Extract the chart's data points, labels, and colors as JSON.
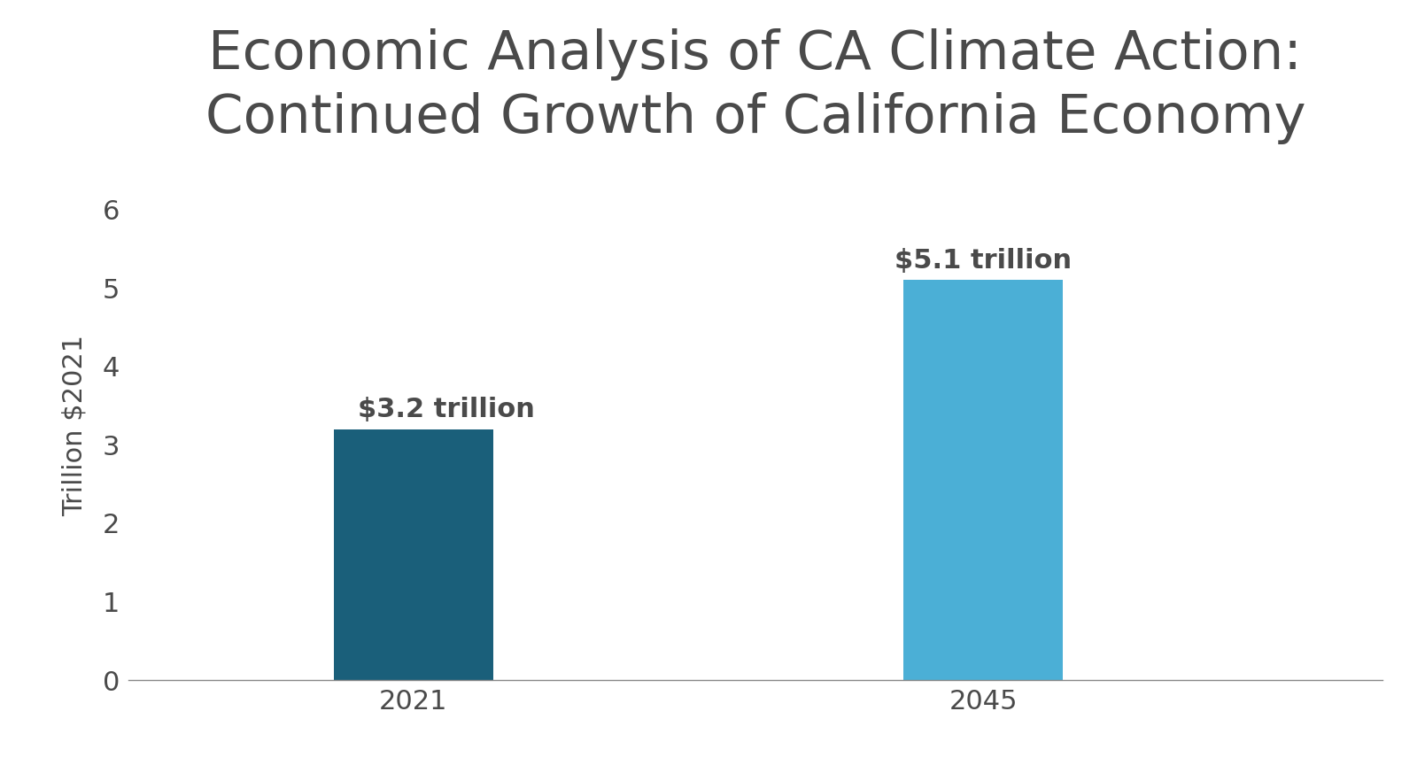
{
  "categories": [
    "2021",
    "2045"
  ],
  "values": [
    3.2,
    5.1
  ],
  "bar_colors": [
    "#1a5f7a",
    "#4bafd6"
  ],
  "bar_labels": [
    "$3.2 trillion",
    "$5.1 trillion"
  ],
  "title": "Economic Analysis of CA Climate Action:\nContinued Growth of California Economy",
  "ylabel": "Trillion $2021",
  "ylim": [
    0,
    6.5
  ],
  "yticks": [
    0,
    1,
    2,
    3,
    4,
    5,
    6
  ],
  "title_fontsize": 44,
  "axis_label_fontsize": 22,
  "tick_fontsize": 22,
  "bar_label_fontsize": 22,
  "background_color": "#ffffff",
  "text_color": "#4a4a4a",
  "bar_width": 0.28,
  "x_positions": [
    1,
    2
  ],
  "xlim": [
    0.5,
    2.7
  ]
}
